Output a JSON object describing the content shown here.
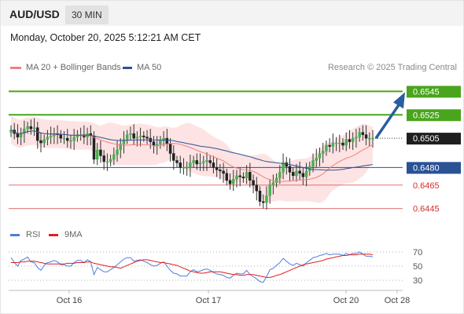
{
  "header": {
    "symbol": "AUD/USD",
    "timeframe": "30 MIN",
    "datetime": "Monday, October 20, 2025 5:12:21 AM CET"
  },
  "legend": {
    "items": [
      {
        "label": "MA 20 + Bollinger Bands",
        "color": "#f08080"
      },
      {
        "label": "MA 50",
        "color": "#2a5294"
      }
    ]
  },
  "copyright": "Research © 2025 Trading Central",
  "rsi_legend": {
    "items": [
      {
        "label": "RSI",
        "color": "#4e7de0"
      },
      {
        "label": "9MA",
        "color": "#e01e1e"
      }
    ]
  },
  "colors": {
    "up": "#4caf50",
    "down": "#222222",
    "resistance": "#4aa51c",
    "ma50": "#2a5294",
    "support": "#e07070",
    "bands": "#fbd0d0",
    "arrow": "#2a5ea0",
    "price_box": "#1f1f1f"
  },
  "chart_data": [
    {
      "type": "candlestick",
      "ylim": [
        0.6432,
        0.6556
      ],
      "x_ticks": [
        "Oct 16",
        "Oct 17",
        "Oct 20",
        "Oct 28"
      ],
      "levels": [
        {
          "value": 0.6545,
          "label": "0.6545",
          "kind": "resistance"
        },
        {
          "value": 0.6525,
          "label": "0.6525",
          "kind": "resistance"
        },
        {
          "value": 0.6505,
          "label": "0.6505",
          "kind": "last"
        },
        {
          "value": 0.648,
          "label": "0.6480",
          "kind": "pivot"
        },
        {
          "value": 0.6465,
          "label": "0.6465",
          "kind": "support"
        },
        {
          "value": 0.6445,
          "label": "0.6445",
          "kind": "support"
        }
      ],
      "series": [
        {
          "name": "MA 20 + Bollinger Bands"
        },
        {
          "name": "MA 50"
        }
      ],
      "forecast_target": 0.6545,
      "close": [
        0.6512,
        0.6509,
        0.6506,
        0.6509,
        0.6513,
        0.6515,
        0.6513,
        0.6514,
        0.6503,
        0.6501,
        0.6504,
        0.6506,
        0.6507,
        0.6509,
        0.6508,
        0.6505,
        0.6505,
        0.6503,
        0.6503,
        0.6506,
        0.6508,
        0.6508,
        0.6506,
        0.6509,
        0.6507,
        0.6487,
        0.6495,
        0.649,
        0.6485,
        0.6485,
        0.6487,
        0.6491,
        0.6495,
        0.65,
        0.6504,
        0.6508,
        0.6509,
        0.6505,
        0.6506,
        0.6507,
        0.6506,
        0.6505,
        0.6502,
        0.6499,
        0.65,
        0.6503,
        0.6505,
        0.65,
        0.6492,
        0.6486,
        0.6484,
        0.648,
        0.648,
        0.648,
        0.6484,
        0.6486,
        0.6483,
        0.6484,
        0.6485,
        0.6486,
        0.6484,
        0.648,
        0.6478,
        0.6477,
        0.6475,
        0.6469,
        0.6466,
        0.647,
        0.6473,
        0.6472,
        0.6471,
        0.6476,
        0.6469,
        0.6465,
        0.646,
        0.6451,
        0.645,
        0.6456,
        0.6465,
        0.6467,
        0.6471,
        0.6476,
        0.6484,
        0.6481,
        0.6476,
        0.6473,
        0.6477,
        0.6475,
        0.6472,
        0.6477,
        0.6481,
        0.6486,
        0.6488,
        0.6492,
        0.6494,
        0.6499,
        0.6498,
        0.6501,
        0.6501,
        0.6501,
        0.6499,
        0.6504,
        0.6502,
        0.6505,
        0.6506,
        0.651,
        0.6508,
        0.6505,
        0.6505,
        0.6505
      ],
      "rsi_ylim": [
        20,
        80
      ],
      "rsi_ticks": [
        30,
        50,
        70
      ],
      "rsi": [
        62,
        55,
        50,
        58,
        60,
        63,
        56,
        55,
        48,
        44,
        51,
        55,
        56,
        58,
        56,
        52,
        52,
        50,
        50,
        55,
        58,
        58,
        55,
        59,
        56,
        38,
        48,
        45,
        42,
        42,
        45,
        48,
        52,
        56,
        60,
        62,
        62,
        57,
        58,
        59,
        57,
        55,
        52,
        50,
        51,
        54,
        56,
        50,
        44,
        40,
        39,
        36,
        36,
        36,
        42,
        45,
        42,
        43,
        45,
        46,
        44,
        41,
        39,
        38,
        37,
        34,
        33,
        37,
        40,
        39,
        39,
        44,
        38,
        35,
        32,
        28,
        27,
        35,
        45,
        47,
        51,
        55,
        61,
        57,
        53,
        51,
        54,
        52,
        50,
        55,
        58,
        62,
        63,
        65,
        66,
        68,
        66,
        67,
        67,
        67,
        65,
        68,
        66,
        68,
        68,
        70,
        67,
        64,
        64,
        63
      ],
      "rsi_ma": [
        55,
        55,
        55,
        56,
        56,
        57,
        57,
        57,
        56,
        55,
        54,
        53,
        53,
        53,
        53,
        53,
        53,
        54,
        54,
        54,
        55,
        55,
        55,
        56,
        56,
        54,
        53,
        52,
        51,
        50,
        49,
        49,
        48,
        47,
        49,
        51,
        53,
        55,
        57,
        58,
        59,
        59,
        58,
        57,
        56,
        55,
        55,
        54,
        53,
        52,
        51,
        49,
        47,
        45,
        43,
        42,
        41,
        40,
        40,
        41,
        42,
        42,
        42,
        42,
        41,
        40,
        39,
        38,
        38,
        37,
        37,
        38,
        38,
        38,
        37,
        36,
        35,
        34,
        34,
        35,
        37,
        38,
        40,
        42,
        44,
        46,
        48,
        50,
        52,
        53,
        54,
        55,
        56,
        57,
        58,
        60,
        61,
        62,
        63,
        64,
        65,
        65,
        66,
        66,
        66,
        67,
        67,
        67,
        67,
        66
      ]
    }
  ]
}
